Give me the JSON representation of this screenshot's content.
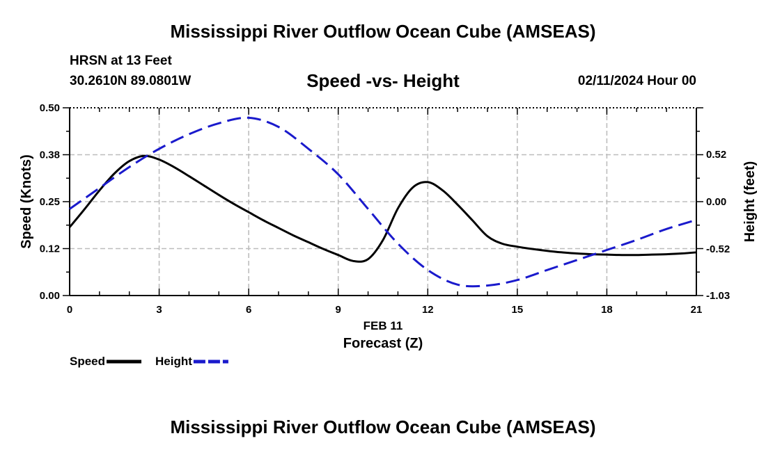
{
  "header": {
    "title": "Mississippi River Outflow Ocean Cube (AMSEAS)",
    "station": "HRSN at 13 Feet",
    "coords": "30.2610N  89.0801W",
    "subtitle": "Speed -vs- Height",
    "datetime": "02/11/2024 Hour 00"
  },
  "footer": {
    "title": "Mississippi River Outflow Ocean Cube (AMSEAS)"
  },
  "chart_data": {
    "type": "line",
    "title": "Speed -vs- Height",
    "xlabel": "Forecast (Z)",
    "date_label": "FEB 11",
    "ylabel_left": "Speed (Knots)",
    "ylabel_right": "Height (feet)",
    "x_range": [
      0,
      21
    ],
    "x_ticks": [
      0,
      3,
      6,
      9,
      12,
      15,
      18,
      21
    ],
    "x_tick_labels": [
      "0",
      "3",
      "6",
      "9",
      "12",
      "15",
      "18",
      "21"
    ],
    "y_left_range": [
      0.0,
      0.5
    ],
    "y_left_ticks": [
      0.0,
      0.125,
      0.25,
      0.375,
      0.5
    ],
    "y_left_tick_labels": [
      "0.00",
      "0.12",
      "0.25",
      "0.38",
      "0.50"
    ],
    "y_right_range": [
      -1.03,
      1.03
    ],
    "y_right_ticks": [
      -1.03,
      -0.52,
      0.0,
      0.52
    ],
    "y_right_tick_labels": [
      "-1.03",
      "-0.52",
      "0.00",
      "0.52"
    ],
    "grid": true,
    "legend_position": "bottom-left",
    "series": [
      {
        "name": "Speed",
        "axis": "left",
        "color": "#000000",
        "style": "solid",
        "x": [
          0,
          0.5,
          1,
          1.5,
          2,
          2.5,
          3,
          3.5,
          4,
          4.5,
          5,
          5.5,
          6,
          6.5,
          7,
          7.5,
          8,
          8.5,
          9,
          9.5,
          10,
          10.5,
          11,
          11.5,
          12,
          12.5,
          13,
          13.5,
          14,
          14.5,
          15,
          15.5,
          16,
          16.5,
          17,
          17.5,
          18,
          18.5,
          19,
          19.5,
          20,
          20.5,
          21
        ],
        "values": [
          0.182,
          0.23,
          0.28,
          0.325,
          0.358,
          0.372,
          0.362,
          0.342,
          0.318,
          0.293,
          0.268,
          0.244,
          0.222,
          0.2,
          0.18,
          0.16,
          0.142,
          0.124,
          0.108,
          0.092,
          0.097,
          0.148,
          0.232,
          0.288,
          0.302,
          0.28,
          0.242,
          0.2,
          0.158,
          0.138,
          0.13,
          0.124,
          0.119,
          0.115,
          0.112,
          0.11,
          0.109,
          0.108,
          0.108,
          0.109,
          0.11,
          0.112,
          0.115
        ]
      },
      {
        "name": "Height",
        "axis": "right",
        "color": "#1a1acc",
        "style": "dashed",
        "x": [
          0,
          1,
          2,
          3,
          4,
          5,
          6,
          7,
          8,
          9,
          10,
          11,
          12,
          13,
          14,
          15,
          16,
          17,
          18,
          19,
          20,
          21
        ],
        "values": [
          -0.08,
          0.15,
          0.38,
          0.58,
          0.74,
          0.86,
          0.92,
          0.82,
          0.58,
          0.3,
          -0.08,
          -0.46,
          -0.75,
          -0.91,
          -0.92,
          -0.86,
          -0.75,
          -0.64,
          -0.53,
          -0.42,
          -0.3,
          -0.2
        ]
      }
    ]
  }
}
